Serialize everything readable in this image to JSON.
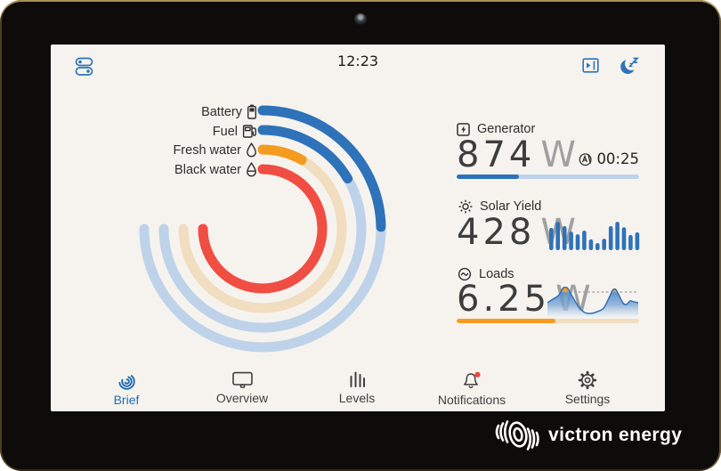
{
  "status_bar": {
    "time": "12:23"
  },
  "colors": {
    "blue": "#2e72b9",
    "light_blue": "#bed3e9",
    "orange": "#f59b20",
    "light_orange": "#f1ddbf",
    "red": "#f04d43",
    "nav_active": "#1d6cb4",
    "screen_bg": "#f6f3ee"
  },
  "gauge": {
    "sweep_deg": 270,
    "rings": [
      {
        "label": "Battery",
        "icon": "battery-icon",
        "pct": 33,
        "color": "#2e72b9",
        "track": "#bed3e9"
      },
      {
        "label": "Fuel",
        "icon": "fuel-pump-icon",
        "pct": 22,
        "color": "#2e72b9",
        "track": "#bed3e9"
      },
      {
        "label": "Fresh water",
        "icon": "water-drop-icon",
        "pct": 11,
        "color": "#f59b20",
        "track": "#f1ddbf"
      },
      {
        "label": "Black water",
        "icon": "water-drop-half-icon",
        "pct": 100,
        "color": "#f04d43",
        "track": "#f8cac5"
      }
    ]
  },
  "panels": {
    "generator": {
      "label": "Generator",
      "value": "874",
      "unit": "W",
      "countdown": "00:25",
      "bar_pct": 34
    },
    "solar": {
      "label": "Solar Yield",
      "value": "428",
      "unit": "W",
      "bars": [
        0.66,
        0.84,
        0.71,
        0.55,
        0.47,
        0.58,
        0.32,
        0.21,
        0.34,
        0.71,
        0.84,
        0.68,
        0.45,
        0.53
      ]
    },
    "loads": {
      "label": "Loads",
      "value": "6.25",
      "unit": "W",
      "bar_pct": 54,
      "wave": {
        "threshold": 6,
        "height": 34,
        "points": [
          [
            0,
            18
          ],
          [
            6,
            14
          ],
          [
            12,
            10
          ],
          [
            17,
            2
          ],
          [
            20,
            0
          ],
          [
            23,
            3
          ],
          [
            28,
            12
          ],
          [
            34,
            22
          ],
          [
            41,
            29
          ],
          [
            48,
            30
          ],
          [
            55,
            28
          ],
          [
            62,
            24
          ],
          [
            68,
            12
          ],
          [
            72,
            4
          ],
          [
            75,
            3
          ],
          [
            78,
            8
          ],
          [
            83,
            18
          ],
          [
            87,
            20
          ],
          [
            91,
            16
          ],
          [
            95,
            17
          ],
          [
            100,
            18
          ]
        ]
      }
    }
  },
  "nav": {
    "items": [
      {
        "label": "Brief",
        "icon": "brief-icon",
        "active": true,
        "badge": false
      },
      {
        "label": "Overview",
        "icon": "overview-icon",
        "active": false,
        "badge": false
      },
      {
        "label": "Levels",
        "icon": "levels-icon",
        "active": false,
        "badge": false
      },
      {
        "label": "Notifications",
        "icon": "bell-icon",
        "active": false,
        "badge": true
      },
      {
        "label": "Settings",
        "icon": "gear-icon",
        "active": false,
        "badge": false
      }
    ]
  },
  "branding": {
    "logo_text": "victron energy"
  }
}
